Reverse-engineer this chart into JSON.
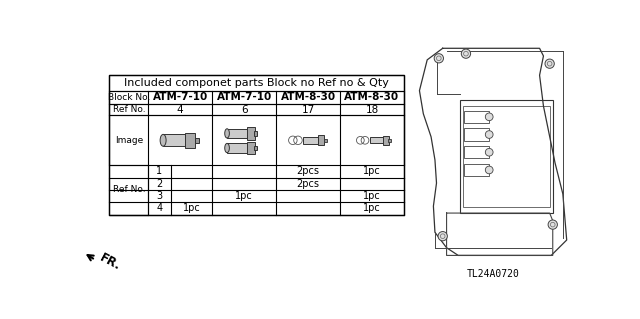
{
  "title": "Included componet parts Block no Ref no & Qty",
  "block_nos": [
    "ATM-7-10",
    "ATM-7-10",
    "ATM-8-30",
    "ATM-8-30"
  ],
  "ref_nos": [
    "4",
    "6",
    "17",
    "18"
  ],
  "ref_no_rows": [
    "1",
    "2",
    "3",
    "4"
  ],
  "qty_data": [
    [
      "",
      "",
      "2pcs",
      "1pc"
    ],
    [
      "",
      "",
      "2pcs",
      ""
    ],
    [
      "",
      "1pc",
      "",
      "1pc"
    ],
    [
      "1pc",
      "",
      "",
      "1pc"
    ]
  ],
  "col_header": "Block No.",
  "row_header": "Ref No.",
  "image_label": "Image",
  "ref_no_label": "Ref No.",
  "part_code": "TL24A0720",
  "bg_color": "#ffffff",
  "arrow_label": "FR."
}
